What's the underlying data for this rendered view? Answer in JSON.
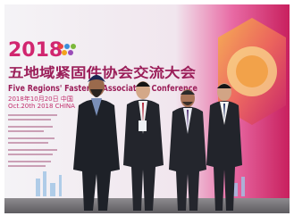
{
  "banner": {
    "year": "2018",
    "title_cn": "五地域紧固件协会交流大会",
    "title_en": "Five Regions' Fastener Association Conference",
    "date_cn": "2018年10月20日 中国",
    "date_en": "Oct.20th 2018 CHINA"
  }
}
